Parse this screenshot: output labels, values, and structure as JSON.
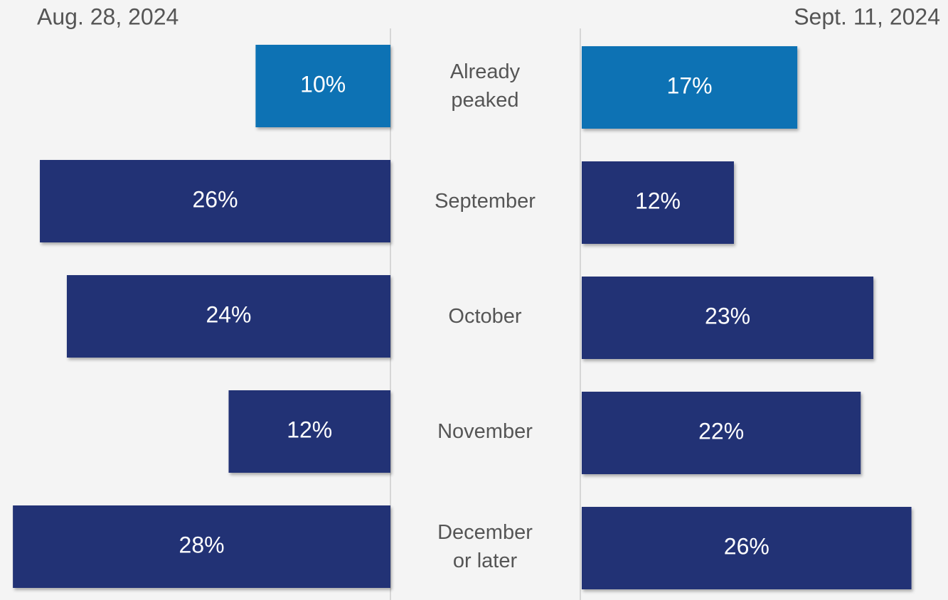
{
  "chart_data": {
    "type": "butterfly-bar",
    "categories": [
      "Already peaked",
      "September",
      "October",
      "November",
      "December or later"
    ],
    "series": [
      {
        "name": "Aug. 28, 2024",
        "values": [
          10,
          26,
          24,
          12,
          28
        ],
        "colors": [
          "#1172b4",
          "#213275",
          "#213275",
          "#213275",
          "#213275"
        ],
        "value_labels": [
          "10%",
          "26%",
          "24%",
          "12%",
          "28%"
        ]
      },
      {
        "name": "Sept. 11, 2024",
        "values": [
          17,
          12,
          23,
          22,
          26
        ],
        "colors": [
          "#1172b4",
          "#213275",
          "#213275",
          "#213275",
          "#213275"
        ],
        "value_labels": [
          "17%",
          "12%",
          "23%",
          "22%",
          "26%"
        ]
      }
    ]
  }
}
